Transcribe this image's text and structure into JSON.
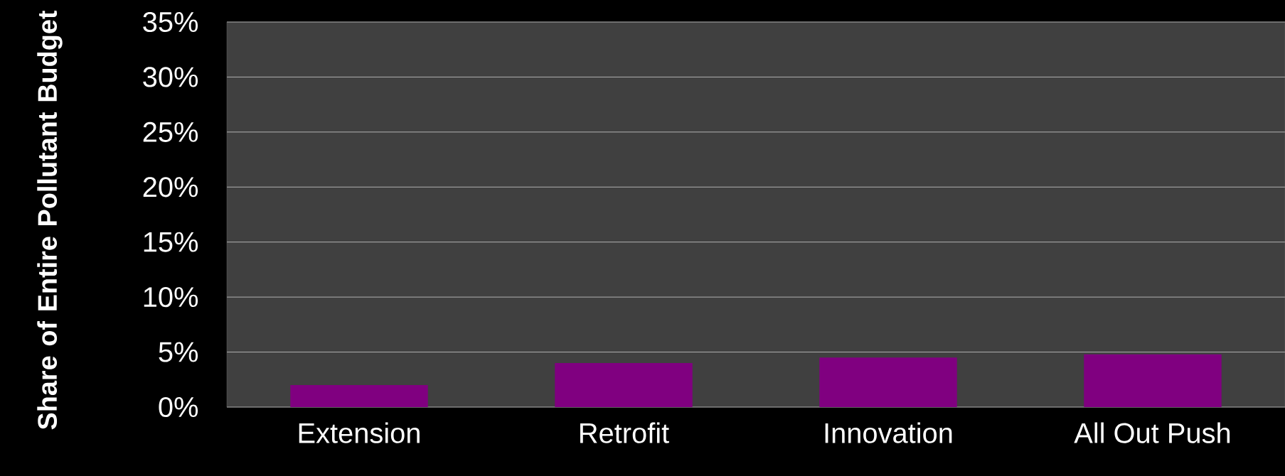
{
  "chart_data": {
    "type": "bar",
    "ylabel": "Share of Entire Pollutant Budget",
    "categories": [
      "Extension",
      "Retrofit",
      "Innovation",
      "All Out Push"
    ],
    "values": [
      2.0,
      4.0,
      4.5,
      4.8
    ],
    "color": "#800080",
    "ylim": [
      0,
      35
    ],
    "yticks": [
      {
        "value": 0,
        "label": "0%"
      },
      {
        "value": 5,
        "label": "5%"
      },
      {
        "value": 10,
        "label": "10%"
      },
      {
        "value": 15,
        "label": "15%"
      },
      {
        "value": 20,
        "label": "20%"
      },
      {
        "value": 25,
        "label": "25%"
      },
      {
        "value": 30,
        "label": "30%"
      },
      {
        "value": 35,
        "label": "35%"
      }
    ],
    "grid": "y"
  }
}
